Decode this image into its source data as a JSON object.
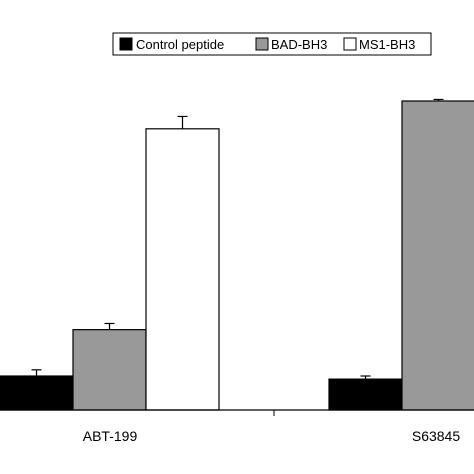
{
  "chart_data": {
    "type": "bar",
    "title": "",
    "xlabel": "",
    "ylabel": "",
    "ylim": [
      0,
      100
    ],
    "grid": false,
    "legend_position": "top-right",
    "categories": [
      "ABT-199",
      "S63845"
    ],
    "series": [
      {
        "name": "Control peptide",
        "values": [
          11,
          10
        ],
        "errors": [
          2,
          1
        ],
        "color": "#000000"
      },
      {
        "name": "BAD-BH3",
        "values": [
          26,
          100
        ],
        "errors": [
          2,
          0.5
        ],
        "color": "#999999"
      },
      {
        "name": "MS1-BH3",
        "values": [
          91,
          null
        ],
        "errors": [
          4,
          null
        ],
        "color": "#ffffff"
      }
    ]
  }
}
